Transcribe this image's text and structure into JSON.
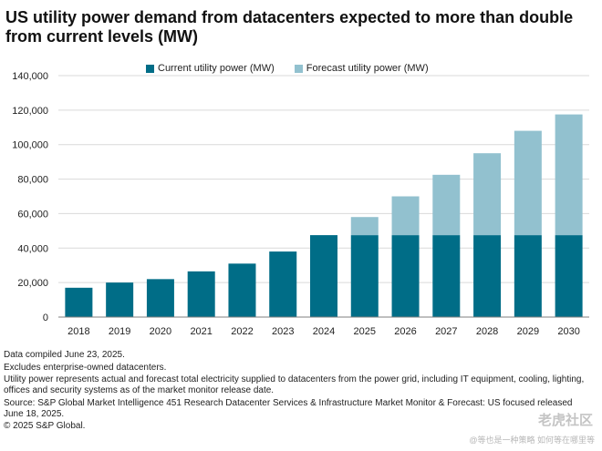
{
  "colors": {
    "current": "#006d87",
    "forecast": "#92c1cf",
    "gridline": "#d9d9d9",
    "axis": "#7f7f7f"
  },
  "legend": {
    "current_label": "Current utility power (MW)",
    "forecast_label": "Forecast utility power (MW)"
  },
  "notes": [
    "Data compiled June 23, 2025.",
    "Excludes enterprise-owned datacenters.",
    "Utility power represents actual and forecast total electricity supplied to datacenters from the power grid, including IT equipment, cooling, lighting, offices and security systems as of the market monitor release date.",
    "Source: S&P Global Market Intelligence 451 Research Datacenter Services & Infrastructure Market Monitor & Forecast: US focused released June 18, 2025.",
    "© 2025 S&P Global."
  ],
  "watermark": {
    "logo_text": "老虎社区",
    "text": "@等也是一种策略 如何等在哪里等"
  },
  "chart_data": {
    "type": "bar",
    "stacked": true,
    "title": "US utility power demand from datacenters expected to more than double from current levels (MW)",
    "xlabel": "",
    "ylabel": "",
    "categories": [
      "2018",
      "2019",
      "2020",
      "2021",
      "2022",
      "2023",
      "2024",
      "2025",
      "2026",
      "2027",
      "2028",
      "2029",
      "2030"
    ],
    "series": [
      {
        "name": "Current utility power (MW)",
        "values": [
          17000,
          20000,
          22000,
          26500,
          31000,
          38000,
          47500,
          47500,
          47500,
          47500,
          47500,
          47500,
          47500
        ]
      },
      {
        "name": "Forecast utility power (MW)",
        "values": [
          0,
          0,
          0,
          0,
          0,
          0,
          0,
          10500,
          22500,
          35000,
          47500,
          60500,
          70000
        ]
      }
    ],
    "ylim": [
      0,
      140000
    ],
    "yticks": [
      "0",
      "20,000",
      "40,000",
      "60,000",
      "80,000",
      "100,000",
      "120,000",
      "140,000"
    ],
    "ytick_values": [
      0,
      20000,
      40000,
      60000,
      80000,
      100000,
      120000,
      140000
    ],
    "grid": true,
    "legend_position": "top-center"
  }
}
